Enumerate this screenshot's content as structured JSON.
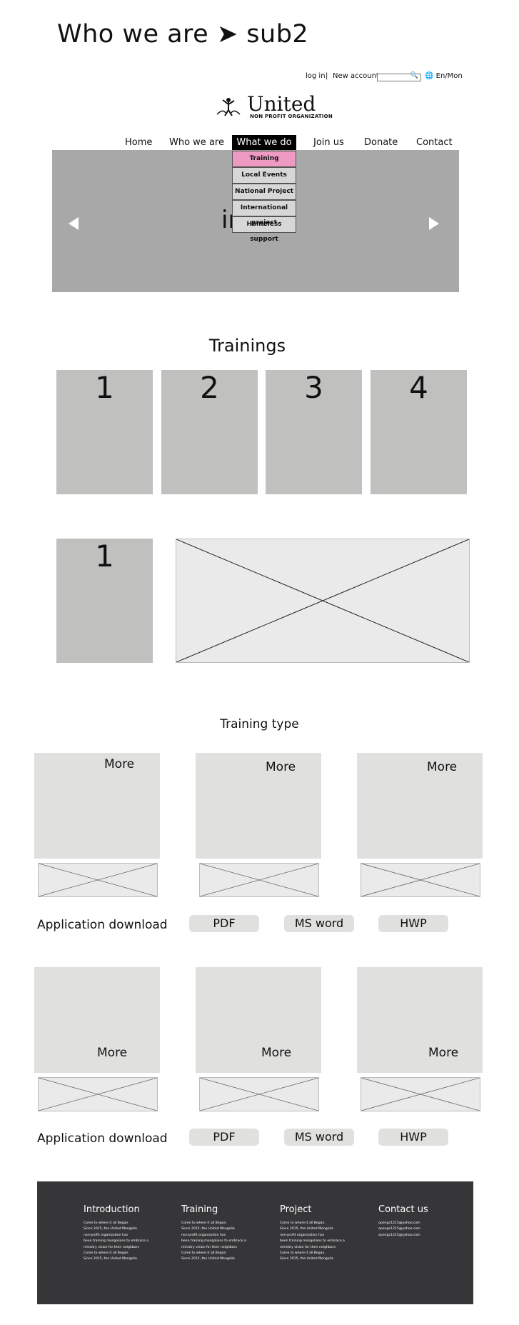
{
  "page_title": "Who we are ➤ sub2",
  "utility": {
    "login": "log in",
    "separator": "|",
    "new_account": "New account",
    "search_icon": "🔍",
    "lang_icon": "🌐",
    "lang": "En/Mon"
  },
  "logo": {
    "name": "United",
    "tagline": "NON PROFIT ORGANIZATION"
  },
  "nav": {
    "home": "Home",
    "who": "Who we are",
    "what": "What we do",
    "join": "Join us",
    "donate": "Donate",
    "contact": "Contact"
  },
  "dropdown": [
    "Training",
    "Local Events",
    "National Project",
    "International project",
    "Homeless support"
  ],
  "hero": {
    "label": "image",
    "prev_arrow": "previous",
    "next_arrow": "next"
  },
  "trainings": {
    "title": "Trainings",
    "cards": [
      "1",
      "2",
      "3",
      "4"
    ]
  },
  "detail": {
    "card": "1"
  },
  "training_type": {
    "title": "Training type",
    "more": "More",
    "app_download": "Application download",
    "pdf": "PDF",
    "msword": "MS word",
    "hwp": "HWP"
  },
  "footer": {
    "columns": [
      {
        "title": "Introduction",
        "lines": [
          "Come to where it all Began.",
          "Since 2015, the United Mongolia",
          "non-profit organization has",
          "been training mongolians to embrace a",
          "ministry vision for their neighbors",
          "Come to where it all Began.",
          "Since 2015, the United Mongolia"
        ]
      },
      {
        "title": "Training",
        "lines": [
          "Come to where it all Began.",
          "Since 2015, the United Mongolia",
          "non-profit organization has",
          "been training mongolians to embrace a",
          "ministry vision for their neighbors",
          "Come to where it all Began.",
          "Since 2015, the United Mongolia"
        ]
      },
      {
        "title": "Project",
        "lines": [
          "Come to where it all Began.",
          "Since 2015, the United Mongolia",
          "non-profit organization has",
          "been training mongolians to embrace a",
          "ministry vision for their neighbors",
          "Come to where it all Began.",
          "Since 2015, the United Mongolia"
        ]
      },
      {
        "title": "Contact us",
        "lines": [
          "opengo1215@yahoo.com",
          "opengo1215@yahoo.com",
          "opengo1215@yahoo.com"
        ]
      }
    ]
  },
  "colors": {
    "accent_pink": "#ef9ac3",
    "footer_bg": "#363638",
    "hero_bg": "#a7a8a7"
  }
}
